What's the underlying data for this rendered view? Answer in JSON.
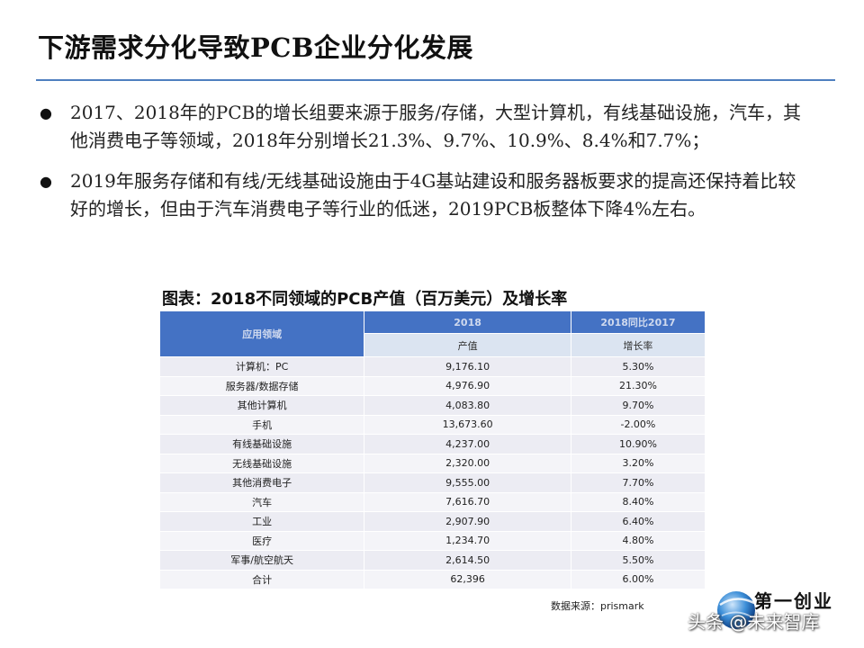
{
  "slide": {
    "title": "下游需求分化导致PCB企业分化发展"
  },
  "bullets": [
    {
      "symbol": "●",
      "text": "2017、2018年的PCB的增长组要来源于服务/存储，大型计算机，有线基础设施，汽车，其他消费电子等领域，2018年分别增长21.3%、9.7%、10.9%、8.4%和7.7%；"
    },
    {
      "symbol": "●",
      "text": "2019年服务存储和有线/无线基础设施由于4G基站建设和服务器板要求的提高还保持着比较好的增长，但由于汽车消费电子等行业的低迷，2019PCB板整体下降4%左右。"
    }
  ],
  "table": {
    "caption": "图表：2018不同领域的PCB产值（百万美元）及增长率",
    "header": {
      "col1": "应用领域",
      "col2": "2018",
      "col3": "2018同比2017",
      "sub2": "产值",
      "sub3": "增长率"
    },
    "rows": [
      [
        "计算机：PC",
        "9,176.10",
        "5.30%"
      ],
      [
        "服务器/数据存储",
        "4,976.90",
        "21.30%"
      ],
      [
        "其他计算机",
        "4,083.80",
        "9.70%"
      ],
      [
        "手机",
        "13,673.60",
        "-2.00%"
      ],
      [
        "有线基础设施",
        "4,237.00",
        "10.90%"
      ],
      [
        "无线基础设施",
        "2,320.00",
        "3.20%"
      ],
      [
        "其他消费电子",
        "9,555.00",
        "7.70%"
      ],
      [
        "汽车",
        "7,616.70",
        "8.40%"
      ],
      [
        "工业",
        "2,907.90",
        "6.40%"
      ],
      [
        "医疗",
        "1,234.70",
        "4.80%"
      ],
      [
        "军事/航空航天",
        "2,614.50",
        "5.50%"
      ],
      [
        "合计",
        "62,396",
        "6.00%"
      ]
    ],
    "source": "数据来源：prismark"
  },
  "branding": {
    "logo_icon": "globe-icon",
    "logo_text": "第一创业",
    "watermark": "头条 @未来智库"
  }
}
